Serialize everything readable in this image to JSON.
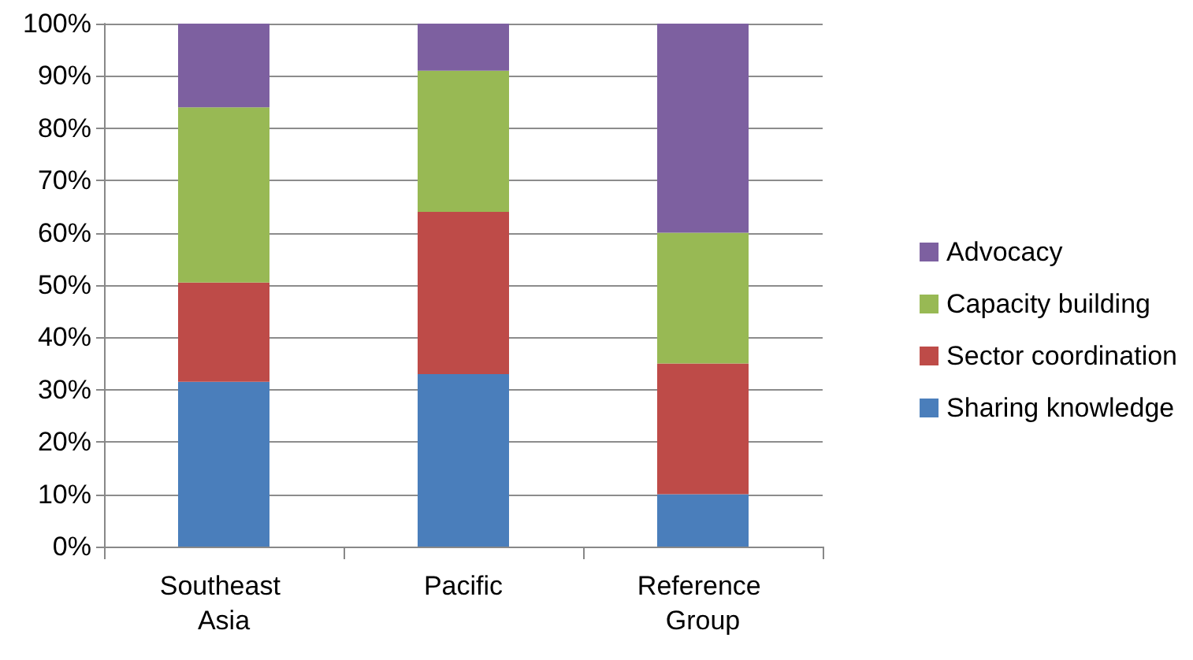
{
  "chart_data": {
    "type": "bar",
    "stacked": true,
    "categories": [
      "Southeast Asia",
      "Pacific",
      "Reference Group"
    ],
    "series": [
      {
        "name": "Sharing knowledge",
        "color": "#4a7ebb",
        "values": [
          31.5,
          33,
          10
        ]
      },
      {
        "name": "Sector coordination",
        "color": "#be4b48",
        "values": [
          19,
          31,
          25
        ]
      },
      {
        "name": "Capacity building",
        "color": "#98b954",
        "values": [
          33.5,
          27,
          25
        ]
      },
      {
        "name": "Advocacy",
        "color": "#7d60a0",
        "values": [
          16,
          9,
          40
        ]
      }
    ],
    "ylim": [
      0,
      100
    ],
    "yticks": [
      {
        "value": 0,
        "label": "0%"
      },
      {
        "value": 10,
        "label": "10%"
      },
      {
        "value": 20,
        "label": "20%"
      },
      {
        "value": 30,
        "label": "30%"
      },
      {
        "value": 40,
        "label": "40%"
      },
      {
        "value": 50,
        "label": "50%"
      },
      {
        "value": 60,
        "label": "60%"
      },
      {
        "value": 70,
        "label": "70%"
      },
      {
        "value": 80,
        "label": "80%"
      },
      {
        "value": 90,
        "label": "90%"
      },
      {
        "value": 100,
        "label": "100%"
      }
    ],
    "grid": "y",
    "legend": "right"
  }
}
